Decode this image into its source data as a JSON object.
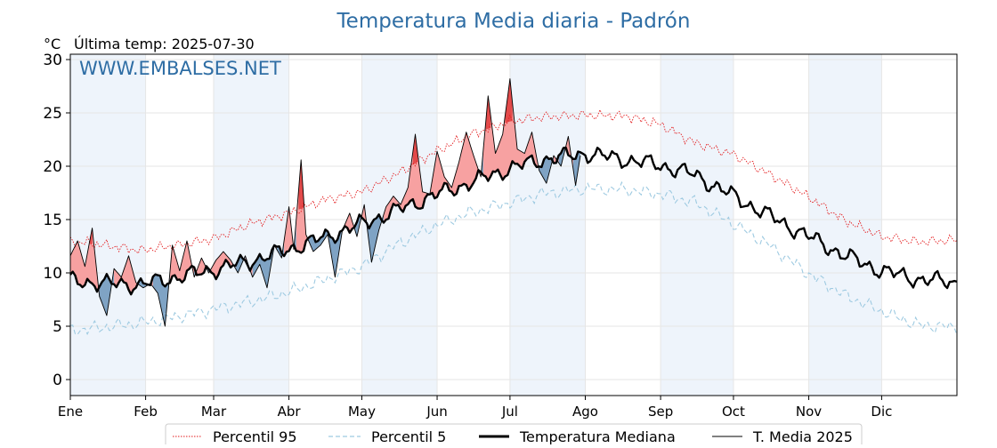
{
  "header": {
    "title": "Temperatura Media diaria - Padrón",
    "unit": "°C",
    "last_temp": "Última temp: 2025-07-30",
    "watermark": "WWW.EMBALSES.NET"
  },
  "colors": {
    "title": "#2e6da4",
    "p95": "#e31a1c",
    "p5": "#9ecae1",
    "median": "#000000",
    "current": "#000000",
    "above_fill": "#f7a1a1",
    "above_strong": "#e34a4a",
    "below_fill": "#7fa3c4",
    "band_shade": "#eef4fb"
  },
  "chart_data": {
    "type": "line",
    "title": "Temperatura Media diaria - Padrón",
    "ylabel": "°C",
    "xlabel": "",
    "ylim": [
      -1.5,
      30.5
    ],
    "xlim": [
      1,
      366
    ],
    "y_ticks": [
      0,
      5,
      10,
      15,
      20,
      25,
      30
    ],
    "x_tick_labels": [
      "Ene",
      "Feb",
      "Mar",
      "Abr",
      "May",
      "Jun",
      "Jul",
      "Ago",
      "Sep",
      "Oct",
      "Nov",
      "Dic"
    ],
    "x_tick_days": [
      1,
      32,
      60,
      91,
      121,
      152,
      182,
      213,
      244,
      274,
      305,
      335
    ],
    "grid": true,
    "legend_position": "bottom",
    "series": [
      {
        "name": "Percentil 95",
        "style": "dotted",
        "points": [
          [
            1,
            13.0
          ],
          [
            15,
            12.6
          ],
          [
            30,
            12.1
          ],
          [
            45,
            12.6
          ],
          [
            60,
            13.2
          ],
          [
            75,
            14.6
          ],
          [
            91,
            15.6
          ],
          [
            105,
            16.8
          ],
          [
            121,
            17.6
          ],
          [
            135,
            19.2
          ],
          [
            150,
            21.2
          ],
          [
            165,
            22.9
          ],
          [
            182,
            24.2
          ],
          [
            195,
            24.6
          ],
          [
            213,
            24.8
          ],
          [
            230,
            24.7
          ],
          [
            244,
            23.9
          ],
          [
            258,
            22.2
          ],
          [
            274,
            21.1
          ],
          [
            290,
            19.1
          ],
          [
            305,
            17.1
          ],
          [
            320,
            14.9
          ],
          [
            335,
            13.4
          ],
          [
            350,
            12.9
          ],
          [
            366,
            13.1
          ]
        ]
      },
      {
        "name": "Percentil 5",
        "style": "dashed",
        "points": [
          [
            1,
            4.6
          ],
          [
            15,
            4.9
          ],
          [
            30,
            5.3
          ],
          [
            45,
            5.9
          ],
          [
            60,
            6.6
          ],
          [
            75,
            7.3
          ],
          [
            91,
            8.2
          ],
          [
            105,
            9.3
          ],
          [
            121,
            10.6
          ],
          [
            135,
            12.6
          ],
          [
            150,
            14.3
          ],
          [
            165,
            15.6
          ],
          [
            182,
            16.6
          ],
          [
            195,
            17.4
          ],
          [
            213,
            17.9
          ],
          [
            230,
            17.8
          ],
          [
            244,
            17.4
          ],
          [
            258,
            16.6
          ],
          [
            274,
            14.6
          ],
          [
            290,
            12.4
          ],
          [
            305,
            9.9
          ],
          [
            320,
            7.9
          ],
          [
            335,
            6.4
          ],
          [
            350,
            5.1
          ],
          [
            366,
            4.9
          ]
        ]
      },
      {
        "name": "Temperatura Mediana",
        "style": "solid-thick",
        "points": [
          [
            1,
            9.3
          ],
          [
            15,
            9.0
          ],
          [
            30,
            8.9
          ],
          [
            45,
            9.6
          ],
          [
            60,
            10.3
          ],
          [
            75,
            11.1
          ],
          [
            91,
            12.2
          ],
          [
            105,
            13.3
          ],
          [
            121,
            14.6
          ],
          [
            135,
            15.8
          ],
          [
            150,
            17.2
          ],
          [
            165,
            18.4
          ],
          [
            182,
            19.8
          ],
          [
            195,
            20.6
          ],
          [
            213,
            21.2
          ],
          [
            230,
            20.6
          ],
          [
            244,
            20.1
          ],
          [
            258,
            19.2
          ],
          [
            274,
            17.2
          ],
          [
            290,
            15.2
          ],
          [
            305,
            13.4
          ],
          [
            320,
            11.6
          ],
          [
            335,
            10.2
          ],
          [
            350,
            9.4
          ],
          [
            366,
            9.1
          ]
        ]
      },
      {
        "name": "T. Media 2025",
        "style": "solid-thin",
        "points": [
          [
            1,
            11.6
          ],
          [
            4,
            13.0
          ],
          [
            7,
            10.6
          ],
          [
            10,
            14.2
          ],
          [
            13,
            7.8
          ],
          [
            16,
            6.0
          ],
          [
            19,
            10.4
          ],
          [
            22,
            9.6
          ],
          [
            25,
            11.6
          ],
          [
            28,
            9.1
          ],
          [
            31,
            8.6
          ],
          [
            34,
            9.0
          ],
          [
            37,
            8.1
          ],
          [
            40,
            5.0
          ],
          [
            43,
            12.6
          ],
          [
            46,
            10.2
          ],
          [
            49,
            13.0
          ],
          [
            52,
            9.6
          ],
          [
            55,
            11.4
          ],
          [
            58,
            10.0
          ],
          [
            61,
            11.2
          ],
          [
            64,
            12.0
          ],
          [
            67,
            11.2
          ],
          [
            70,
            10.0
          ],
          [
            73,
            11.6
          ],
          [
            76,
            9.6
          ],
          [
            79,
            10.8
          ],
          [
            82,
            8.6
          ],
          [
            85,
            12.6
          ],
          [
            88,
            11.4
          ],
          [
            91,
            16.2
          ],
          [
            93,
            12.2
          ],
          [
            96,
            20.6
          ],
          [
            98,
            13.6
          ],
          [
            101,
            12.0
          ],
          [
            104,
            12.6
          ],
          [
            107,
            13.6
          ],
          [
            110,
            9.6
          ],
          [
            113,
            14.0
          ],
          [
            116,
            15.6
          ],
          [
            119,
            13.4
          ],
          [
            122,
            16.4
          ],
          [
            125,
            11.0
          ],
          [
            128,
            14.0
          ],
          [
            131,
            16.2
          ],
          [
            134,
            17.2
          ],
          [
            137,
            16.4
          ],
          [
            140,
            18.0
          ],
          [
            143,
            23.0
          ],
          [
            146,
            17.6
          ],
          [
            149,
            17.4
          ],
          [
            152,
            21.4
          ],
          [
            155,
            19.0
          ],
          [
            158,
            18.0
          ],
          [
            161,
            20.4
          ],
          [
            164,
            23.2
          ],
          [
            167,
            21.0
          ],
          [
            170,
            19.0
          ],
          [
            173,
            26.6
          ],
          [
            176,
            21.2
          ],
          [
            179,
            23.0
          ],
          [
            182,
            28.2
          ],
          [
            185,
            21.6
          ],
          [
            188,
            21.2
          ],
          [
            191,
            23.2
          ],
          [
            194,
            19.6
          ],
          [
            197,
            18.4
          ],
          [
            200,
            21.0
          ],
          [
            203,
            20.0
          ],
          [
            206,
            22.8
          ],
          [
            209,
            18.2
          ],
          [
            211,
            21.0
          ]
        ]
      }
    ]
  }
}
